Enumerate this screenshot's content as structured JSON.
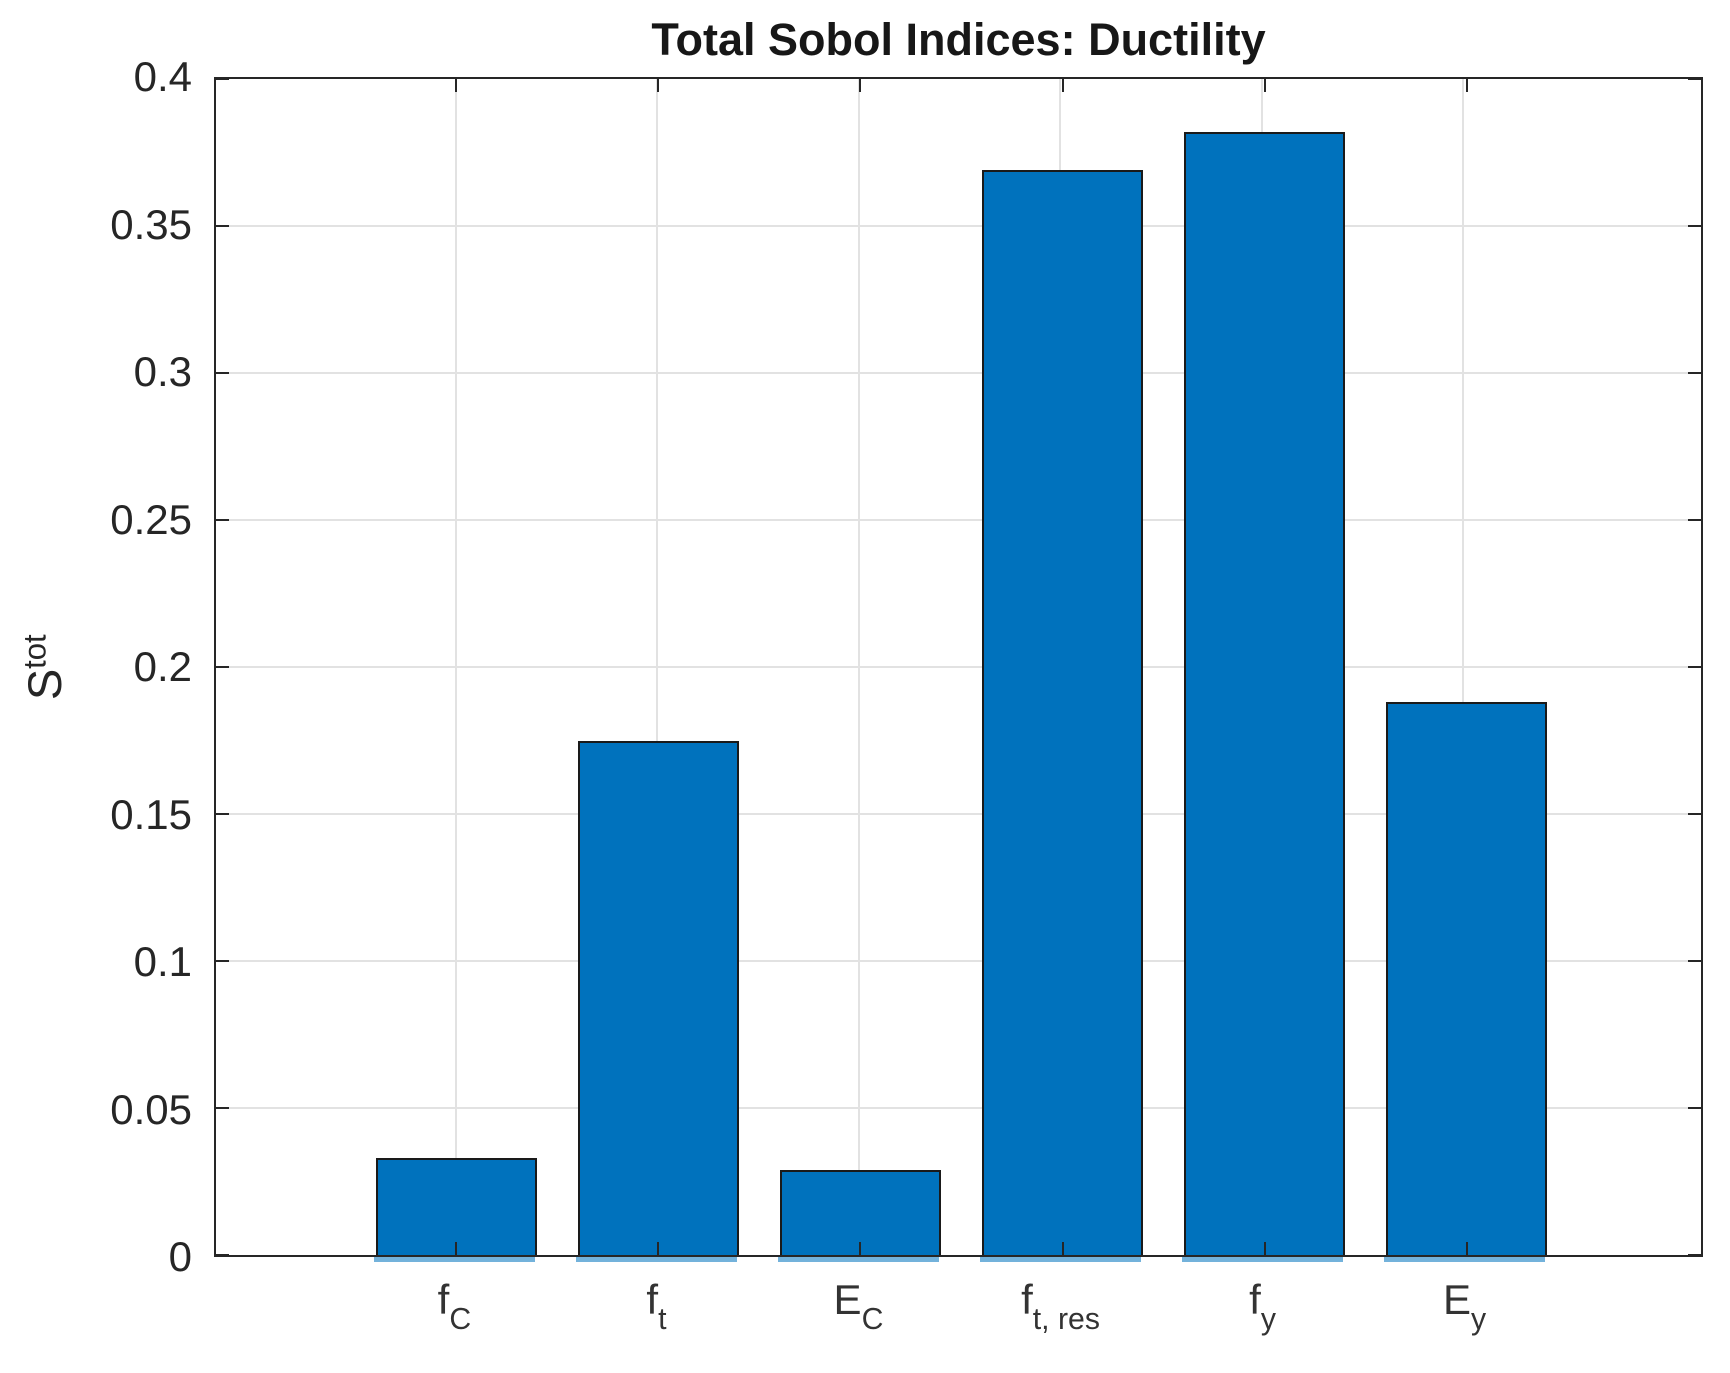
{
  "title": "Total Sobol Indices: Ductility",
  "ylabel": {
    "base": "S",
    "sup": "tot"
  },
  "chart_data": {
    "type": "bar",
    "title": "Total Sobol Indices: Ductility",
    "xlabel": "",
    "ylabel": "S^tot",
    "categories": [
      {
        "base": "f",
        "sub": "C"
      },
      {
        "base": "f",
        "sub": "t"
      },
      {
        "base": "E",
        "sub": "C"
      },
      {
        "base": "f",
        "sub": "t, res"
      },
      {
        "base": "f",
        "sub": "y"
      },
      {
        "base": "E",
        "sub": "y"
      }
    ],
    "values": [
      0.033,
      0.175,
      0.029,
      0.369,
      0.382,
      0.188
    ],
    "ylim": [
      0,
      0.4
    ],
    "yticks": [
      0,
      0.05,
      0.1,
      0.15,
      0.2,
      0.25,
      0.3,
      0.35,
      0.4
    ],
    "ytick_labels": [
      "0",
      "0.05",
      "0.1",
      "0.15",
      "0.2",
      "0.25",
      "0.3",
      "0.35",
      "0.4"
    ],
    "xlim": [
      -0.19,
      7.18
    ],
    "category_positions": [
      1,
      2,
      3,
      4,
      5,
      6
    ],
    "bar_width_fraction": 0.8,
    "grid": true,
    "legend": "none",
    "bar_color": "#0072BD",
    "bar_edge_color": "#1a1a1a",
    "axis_color": "#262626",
    "grid_color": "#e2e2e2"
  }
}
